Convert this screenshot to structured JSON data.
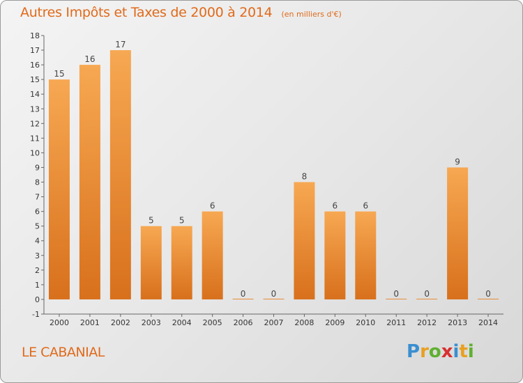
{
  "header": {
    "title": "Autres Impôts et Taxes de 2000 à 2014",
    "unit": "(en milliers d'€)"
  },
  "footer": {
    "commune": "LE CABANIAL",
    "logo_text": "Proxiti",
    "logo_letters": [
      {
        "ch": "P",
        "color": "#3a8fd0"
      },
      {
        "ch": "r",
        "color": "#e8a020"
      },
      {
        "ch": "o",
        "color": "#5fb030"
      },
      {
        "ch": "x",
        "color": "#d83030"
      },
      {
        "ch": "i",
        "color": "#3a8fd0"
      },
      {
        "ch": "t",
        "color": "#e8a020"
      },
      {
        "ch": "i",
        "color": "#5fb030"
      }
    ]
  },
  "colors": {
    "title": "#e06a1a",
    "bar_top": "#f7a852",
    "bar_bottom": "#d8701c"
  },
  "chart_data": {
    "type": "bar",
    "title": "Autres Impôts et Taxes de 2000 à 2014",
    "xlabel": "",
    "ylabel": "",
    "categories": [
      "2000",
      "2001",
      "2002",
      "2003",
      "2004",
      "2005",
      "2006",
      "2007",
      "2008",
      "2009",
      "2010",
      "2011",
      "2012",
      "2013",
      "2014"
    ],
    "values": [
      15,
      16,
      17,
      5,
      5,
      6,
      0,
      0,
      8,
      6,
      6,
      0,
      0,
      9,
      0
    ],
    "ylim": [
      -1,
      18
    ],
    "yticks": [
      -1,
      0,
      1,
      2,
      3,
      4,
      5,
      6,
      7,
      8,
      9,
      10,
      11,
      12,
      13,
      14,
      15,
      16,
      17,
      18
    ],
    "grid": false,
    "legend": "none"
  }
}
